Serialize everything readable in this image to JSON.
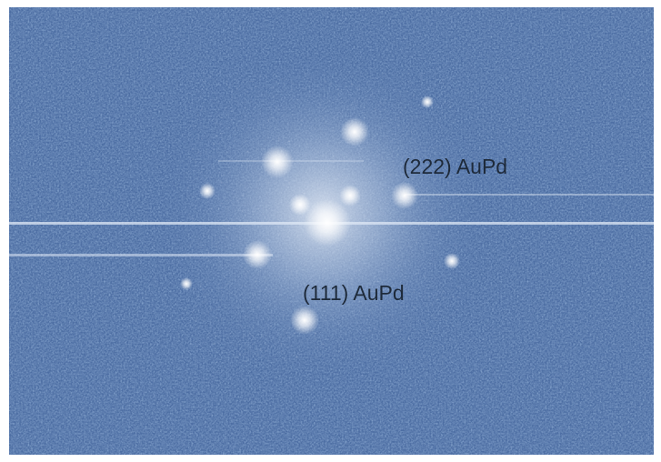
{
  "annotations": [
    {
      "text": "(222) AuPd"
    },
    {
      "text": "(111) AuPd"
    }
  ]
}
